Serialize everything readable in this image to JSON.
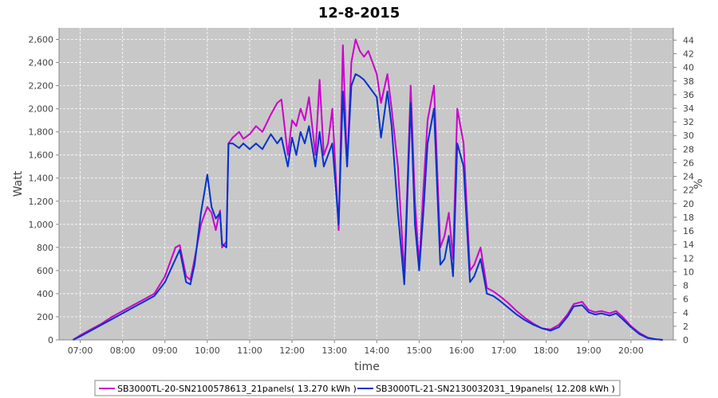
{
  "chart_data": {
    "type": "line",
    "title": "12-8-2015",
    "xlabel": "time",
    "ylabel": "Watt",
    "y2label": "%",
    "xlim": [
      6.5,
      21.0
    ],
    "ylim": [
      0,
      2700
    ],
    "y2lim": [
      0,
      45.8
    ],
    "x_tick_values": [
      7,
      8,
      9,
      10,
      11,
      12,
      13,
      14,
      15,
      16,
      17,
      18,
      19,
      20
    ],
    "x_tick_labels": [
      "07:00",
      "08:00",
      "09:00",
      "10:00",
      "11:00",
      "12:00",
      "13:00",
      "14:00",
      "15:00",
      "16:00",
      "17:00",
      "18:00",
      "19:00",
      "20:00"
    ],
    "y_tick_values": [
      0,
      200,
      400,
      600,
      800,
      1000,
      1200,
      1400,
      1600,
      1800,
      2000,
      2200,
      2400,
      2600
    ],
    "y_tick_labels": [
      "0",
      "200",
      "400",
      "600",
      "800",
      "1,000",
      "1,200",
      "1,400",
      "1,600",
      "1,800",
      "2,000",
      "2,200",
      "2,400",
      "2,600"
    ],
    "y2_tick_values": [
      0,
      2,
      4,
      6,
      8,
      10,
      12,
      14,
      16,
      18,
      20,
      22,
      24,
      26,
      28,
      30,
      32,
      34,
      36,
      38,
      40,
      42,
      44
    ],
    "y2_tick_labels": [
      "0",
      "2",
      "4",
      "6",
      "8",
      "10",
      "12",
      "14",
      "16",
      "18",
      "20",
      "22",
      "24",
      "26",
      "28",
      "30",
      "32",
      "34",
      "36",
      "38",
      "40",
      "42",
      "44"
    ],
    "grid": true,
    "legend_position": "bottom",
    "background_color": "#c8c8c8",
    "series": [
      {
        "name": "SB3000TL-20-SN2100578613_21panels( 13.270 kWh )",
        "color": "#cc00cc",
        "x": [
          6.83,
          7.0,
          7.25,
          7.5,
          7.75,
          8.0,
          8.25,
          8.5,
          8.75,
          9.0,
          9.25,
          9.35,
          9.5,
          9.6,
          9.7,
          9.85,
          10.0,
          10.1,
          10.2,
          10.3,
          10.35,
          10.45,
          10.5,
          10.6,
          10.75,
          10.85,
          11.0,
          11.15,
          11.3,
          11.5,
          11.65,
          11.75,
          11.9,
          12.0,
          12.1,
          12.2,
          12.3,
          12.4,
          12.55,
          12.65,
          12.75,
          12.85,
          12.95,
          13.1,
          13.2,
          13.3,
          13.4,
          13.5,
          13.6,
          13.7,
          13.8,
          13.9,
          14.0,
          14.1,
          14.25,
          14.35,
          14.5,
          14.65,
          14.8,
          14.9,
          15.0,
          15.1,
          15.2,
          15.35,
          15.5,
          15.6,
          15.7,
          15.8,
          15.9,
          16.05,
          16.2,
          16.3,
          16.45,
          16.6,
          16.75,
          16.9,
          17.1,
          17.3,
          17.5,
          17.7,
          17.9,
          18.1,
          18.3,
          18.5,
          18.65,
          18.85,
          19.0,
          19.15,
          19.3,
          19.5,
          19.65,
          19.8,
          20.0,
          20.2,
          20.4,
          20.6,
          20.75
        ],
        "values": [
          0,
          40,
          90,
          140,
          200,
          250,
          300,
          350,
          400,
          550,
          800,
          820,
          550,
          520,
          700,
          1000,
          1150,
          1100,
          950,
          1120,
          800,
          850,
          1700,
          1750,
          1800,
          1740,
          1780,
          1850,
          1800,
          1950,
          2050,
          2080,
          1600,
          1900,
          1850,
          2000,
          1900,
          2100,
          1600,
          2250,
          1600,
          1700,
          2000,
          950,
          2550,
          1500,
          2400,
          2600,
          2500,
          2450,
          2500,
          2400,
          2300,
          2050,
          2300,
          2000,
          1500,
          550,
          2200,
          1200,
          650,
          1300,
          1900,
          2200,
          800,
          900,
          1100,
          700,
          2000,
          1700,
          600,
          650,
          800,
          450,
          420,
          380,
          320,
          250,
          190,
          140,
          100,
          90,
          130,
          220,
          310,
          330,
          260,
          240,
          250,
          230,
          250,
          200,
          120,
          60,
          20,
          5,
          0
        ]
      },
      {
        "name": "SB3000TL-21-SN2130032031_19panels( 12.208 kWh )",
        "color": "#0033cc",
        "x": [
          6.83,
          7.0,
          7.25,
          7.5,
          7.75,
          8.0,
          8.25,
          8.5,
          8.75,
          9.0,
          9.25,
          9.35,
          9.5,
          9.6,
          9.7,
          9.85,
          10.0,
          10.1,
          10.2,
          10.3,
          10.35,
          10.45,
          10.5,
          10.6,
          10.75,
          10.85,
          11.0,
          11.15,
          11.3,
          11.5,
          11.65,
          11.75,
          11.9,
          12.0,
          12.1,
          12.2,
          12.3,
          12.4,
          12.55,
          12.65,
          12.75,
          12.85,
          12.95,
          13.1,
          13.2,
          13.3,
          13.4,
          13.5,
          13.6,
          13.7,
          13.8,
          13.9,
          14.0,
          14.1,
          14.25,
          14.35,
          14.5,
          14.65,
          14.8,
          14.9,
          15.0,
          15.1,
          15.2,
          15.35,
          15.5,
          15.6,
          15.7,
          15.8,
          15.9,
          16.05,
          16.2,
          16.3,
          16.45,
          16.6,
          16.75,
          16.9,
          17.1,
          17.3,
          17.5,
          17.7,
          17.9,
          18.1,
          18.3,
          18.5,
          18.65,
          18.85,
          19.0,
          19.15,
          19.3,
          19.5,
          19.65,
          19.8,
          20.0,
          20.2,
          20.4,
          20.6,
          20.75
        ],
        "values": [
          0,
          30,
          80,
          130,
          180,
          230,
          280,
          330,
          380,
          500,
          700,
          780,
          500,
          480,
          650,
          1100,
          1430,
          1150,
          1050,
          1100,
          830,
          800,
          1700,
          1700,
          1660,
          1700,
          1650,
          1700,
          1650,
          1780,
          1700,
          1750,
          1500,
          1750,
          1600,
          1800,
          1700,
          1850,
          1500,
          1800,
          1500,
          1600,
          1700,
          1000,
          2150,
          1500,
          2200,
          2300,
          2280,
          2250,
          2200,
          2150,
          2100,
          1750,
          2150,
          1850,
          1100,
          480,
          2050,
          1000,
          600,
          1100,
          1700,
          2000,
          650,
          700,
          900,
          550,
          1700,
          1500,
          500,
          550,
          700,
          400,
          380,
          340,
          280,
          220,
          170,
          130,
          100,
          80,
          110,
          200,
          290,
          300,
          240,
          220,
          230,
          210,
          230,
          180,
          110,
          50,
          15,
          5,
          0
        ]
      }
    ]
  },
  "legend": {
    "items": [
      {
        "label": "SB3000TL-20-SN2100578613_21panels( 13.270 kWh )",
        "color": "#cc00cc"
      },
      {
        "label": "SB3000TL-21-SN2130032031_19panels( 12.208 kWh )",
        "color": "#0033cc"
      }
    ]
  }
}
